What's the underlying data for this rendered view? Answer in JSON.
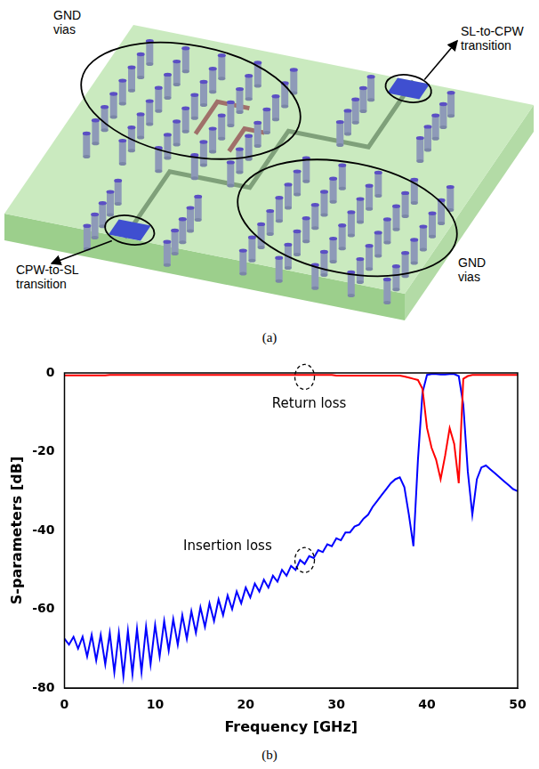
{
  "diagram": {
    "labels": [
      "GND vias",
      "SL-to-CPW transition",
      "CPW-to-SL transition",
      "GND vias"
    ],
    "caption": "(a)"
  },
  "chart_data": {
    "type": "line",
    "caption": "(b)",
    "x_label": "Frequency [GHz]",
    "y_label": "S-parameters [dB]",
    "x": [
      0,
      0.5,
      1,
      1.5,
      2,
      2.5,
      3,
      3.5,
      4,
      4.5,
      5,
      5.5,
      6,
      6.5,
      7,
      7.5,
      8,
      8.5,
      9,
      9.5,
      10,
      10.5,
      11,
      11.5,
      12,
      12.5,
      13,
      13.5,
      14,
      14.5,
      15,
      15.5,
      16,
      16.5,
      17,
      17.5,
      18,
      18.5,
      19,
      19.5,
      20,
      20.5,
      21,
      21.5,
      22,
      22.5,
      23,
      23.5,
      24,
      24.5,
      25,
      25.5,
      26,
      26.5,
      27,
      27.5,
      28,
      28.5,
      29,
      29.5,
      30,
      30.5,
      31,
      31.5,
      32,
      32.5,
      33,
      33.5,
      34,
      34.5,
      35,
      35.5,
      36,
      36.5,
      37,
      37.5,
      38,
      38.5,
      39,
      39.5,
      40,
      40.5,
      41,
      41.5,
      42,
      42.5,
      43,
      43.5,
      44,
      44.5,
      45,
      45.5,
      46,
      46.5,
      47,
      47.5,
      48,
      48.5,
      49,
      49.5,
      50
    ],
    "series": [
      {
        "color": "#ff0000",
        "values": [
          -0.6,
          -0.6,
          -0.6,
          -0.6,
          -0.6,
          -0.6,
          -0.6,
          -0.6,
          -0.6,
          -0.6,
          -0.5,
          -0.5,
          -0.5,
          -0.5,
          -0.5,
          -0.5,
          -0.5,
          -0.5,
          -0.5,
          -0.5,
          -0.5,
          -0.5,
          -0.5,
          -0.5,
          -0.5,
          -0.5,
          -0.5,
          -0.5,
          -0.5,
          -0.5,
          -0.5,
          -0.5,
          -0.5,
          -0.5,
          -0.5,
          -0.5,
          -0.5,
          -0.5,
          -0.5,
          -0.5,
          -0.5,
          -0.5,
          -0.5,
          -0.5,
          -0.5,
          -0.5,
          -0.5,
          -0.5,
          -0.5,
          -0.5,
          -0.5,
          -0.5,
          -0.5,
          -0.5,
          -0.5,
          -0.5,
          -0.5,
          -0.5,
          -0.5,
          -0.5,
          -0.7,
          -0.7,
          -0.7,
          -0.7,
          -0.7,
          -0.7,
          -0.7,
          -0.7,
          -0.7,
          -0.7,
          -0.7,
          -0.7,
          -0.7,
          -0.7,
          -0.7,
          -0.9,
          -1.2,
          -1.5,
          -1.8,
          -4,
          -14,
          -19,
          -22,
          -27,
          -21,
          -14,
          -18,
          -28,
          -1.5,
          -0.8,
          -0.5,
          -0.5,
          -0.5,
          -0.5,
          -0.5,
          -0.5,
          -0.5,
          -0.5,
          -0.5,
          -0.5,
          -0.5
        ]
      },
      {
        "color": "#0000ff",
        "values": [
          -67.5,
          -69,
          -67,
          -70,
          -67,
          -72,
          -66.5,
          -73,
          -66.5,
          -74,
          -66,
          -76,
          -66,
          -77,
          -65.5,
          -76.5,
          -65,
          -76,
          -64.5,
          -74,
          -64,
          -72,
          -63,
          -70.5,
          -62.5,
          -69,
          -61.5,
          -67.5,
          -60.5,
          -66,
          -59.5,
          -64.5,
          -58.5,
          -63,
          -57.5,
          -61.5,
          -56.5,
          -60,
          -55.5,
          -58.5,
          -54.5,
          -57,
          -53.5,
          -55.5,
          -52.5,
          -54.5,
          -51.5,
          -53,
          -50,
          -51.5,
          -49,
          -50,
          -47.5,
          -48.5,
          -46.5,
          -47,
          -45,
          -45.5,
          -43.5,
          -44,
          -42,
          -42.5,
          -40.5,
          -40.5,
          -39,
          -38.5,
          -37,
          -36,
          -34,
          -32.5,
          -31,
          -29.5,
          -28,
          -27,
          -26.5,
          -29,
          -36,
          -44,
          -22,
          -5,
          -0.5,
          -0.3,
          -0.3,
          -0.4,
          -0.4,
          -0.3,
          -0.3,
          -0.8,
          -8,
          -25,
          -36,
          -27,
          -24,
          -23.5,
          -24.5,
          -25.5,
          -26.5,
          -27.5,
          -28.5,
          -29.5,
          -30
        ]
      }
    ],
    "xlim": [
      0,
      50
    ],
    "xticks": [
      0,
      10,
      20,
      30,
      40,
      50
    ],
    "ylim": [
      -80,
      0
    ],
    "yticks": [
      -80,
      -60,
      -40,
      -20,
      0
    ],
    "grid": false,
    "annotations": [
      {
        "text": "Return loss",
        "x": 27,
        "y": -8,
        "target": [
          26.5,
          -1
        ]
      },
      {
        "text": "Insertion loss",
        "x": 18,
        "y": -44,
        "target": [
          26.5,
          -47.5
        ]
      }
    ]
  }
}
